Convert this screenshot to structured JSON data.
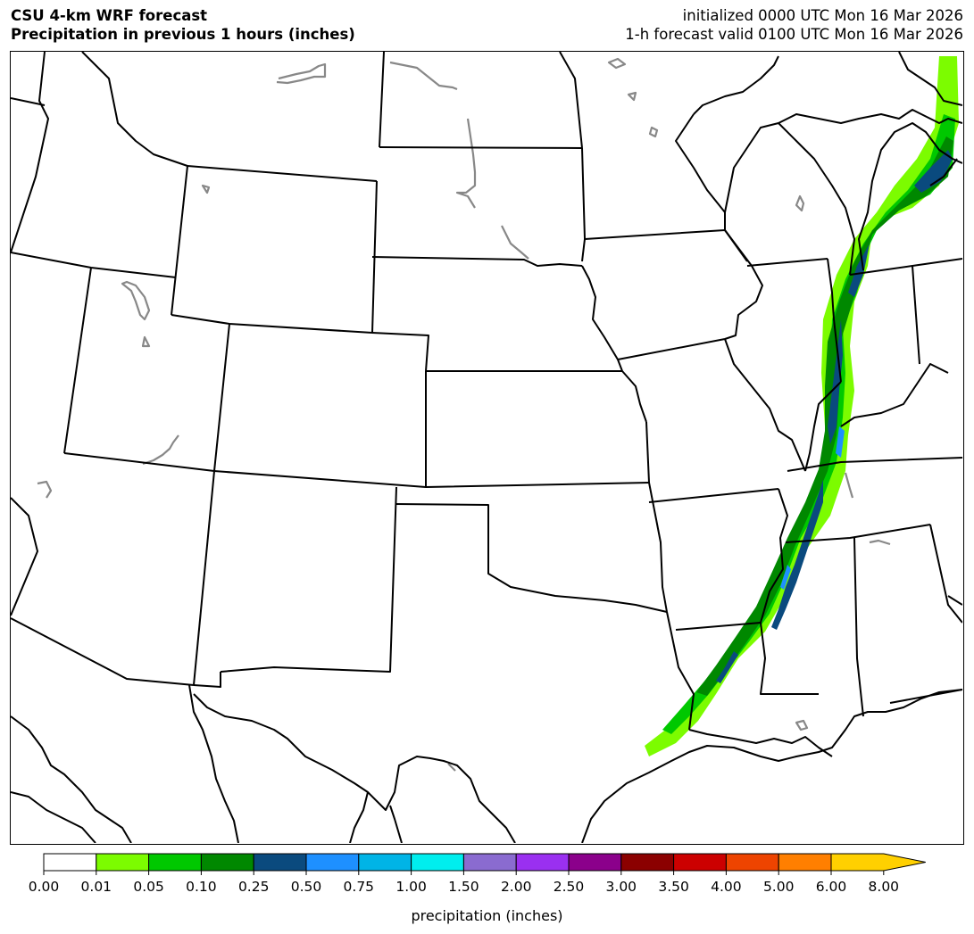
{
  "title": {
    "line1": "CSU 4-km WRF forecast",
    "line2": "Precipitation in previous 1 hours (inches)",
    "init": "initialized 0000 UTC Mon 16 Mar 2026",
    "valid": "1-h forecast valid 0100 UTC Mon 16 Mar 2026"
  },
  "colorbar": {
    "label": "precipitation (inches)",
    "ticks": [
      "0.00",
      "0.01",
      "0.05",
      "0.10",
      "0.25",
      "0.50",
      "0.75",
      "1.00",
      "1.50",
      "2.00",
      "2.50",
      "3.00",
      "3.50",
      "4.00",
      "5.00",
      "6.00",
      "8.00"
    ],
    "colors": [
      "#ffffff",
      "#7cfc00",
      "#00c800",
      "#008800",
      "#0a4a7e",
      "#1e90ff",
      "#00b4e6",
      "#00eeee",
      "#8a6bd0",
      "#9a30f0",
      "#8b008b",
      "#8b0000",
      "#cc0000",
      "#ee4400",
      "#ff7f00",
      "#ffd000"
    ],
    "extend": "max"
  },
  "map": {
    "state_border_color": "#000000",
    "water_color": "#888888"
  }
}
